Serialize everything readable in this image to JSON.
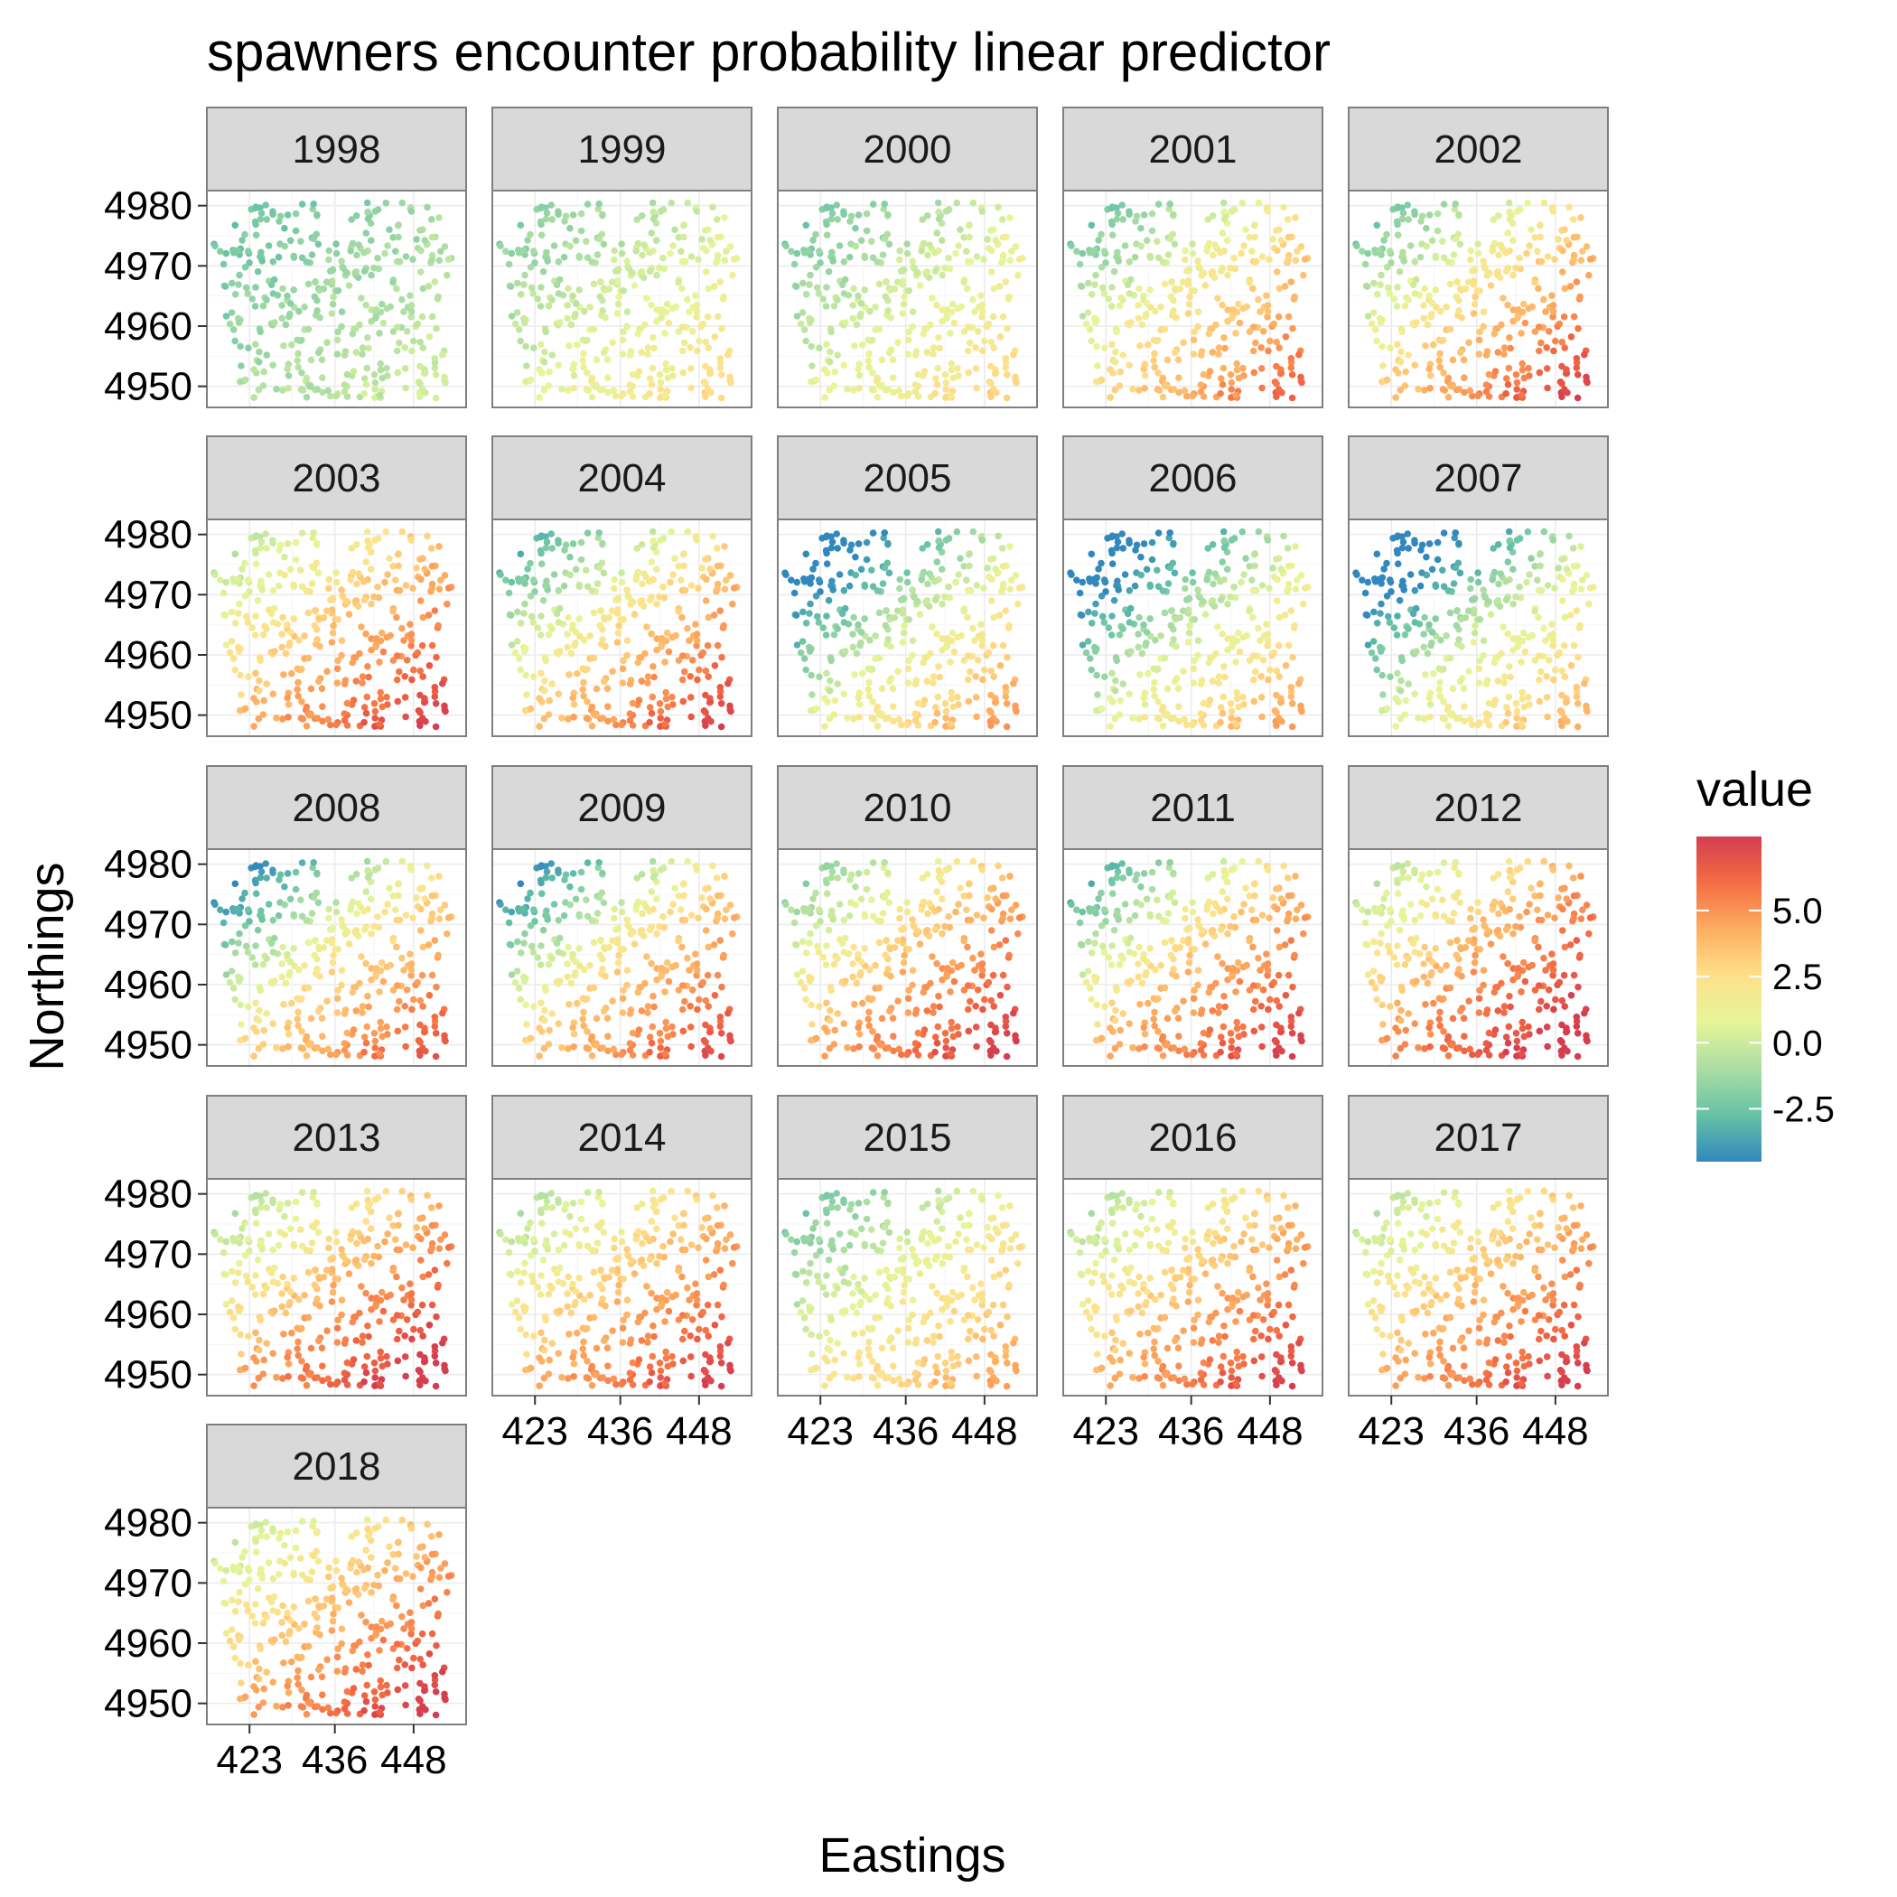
{
  "chart_data": {
    "type": "scatter",
    "title": "spawners encounter probability linear predictor",
    "xlabel": "Eastings",
    "ylabel": "Northings",
    "facet_variable": "year",
    "facets": [
      "1998",
      "1999",
      "2000",
      "2001",
      "2002",
      "2003",
      "2004",
      "2005",
      "2006",
      "2007",
      "2008",
      "2009",
      "2010",
      "2011",
      "2012",
      "2013",
      "2014",
      "2015",
      "2016",
      "2017",
      "2018"
    ],
    "facet_columns": 5,
    "x_ticks": [
      423,
      436,
      448
    ],
    "y_ticks": [
      4950,
      4960,
      4970,
      4980
    ],
    "xlim": [
      416.5,
      456
    ],
    "ylim": [
      4946.5,
      4982.5
    ],
    "grid": true,
    "legend": {
      "title": "value",
      "position": "right",
      "type": "colorbar",
      "range": [
        -4.5,
        7.8
      ],
      "breaks": [
        5.0,
        2.5,
        0.0,
        -2.5
      ],
      "break_labels": [
        "5.0",
        "2.5",
        "0.0",
        "-2.5"
      ],
      "palette": [
        "#3288bd",
        "#66c2a5",
        "#abdda4",
        "#e6f598",
        "#fee08b",
        "#fdae61",
        "#f46d43",
        "#d53e4f"
      ]
    },
    "panel_summary": [
      {
        "year": "1998",
        "mean_value": -1.0,
        "north_west": -2.0,
        "south_east": -0.3
      },
      {
        "year": "1999",
        "mean_value": 0.5,
        "north_west": -1.0,
        "south_east": 1.8
      },
      {
        "year": "2000",
        "mean_value": 0.6,
        "north_west": -1.2,
        "south_east": 2.0
      },
      {
        "year": "2001",
        "mean_value": 2.4,
        "north_west": -0.6,
        "south_east": 4.8
      },
      {
        "year": "2002",
        "mean_value": 3.0,
        "north_west": -0.3,
        "south_east": 5.8
      },
      {
        "year": "2003",
        "mean_value": 3.8,
        "north_west": 1.2,
        "south_east": 6.2
      },
      {
        "year": "2004",
        "mean_value": 3.0,
        "north_west": -0.8,
        "south_east": 5.8
      },
      {
        "year": "2005",
        "mean_value": 0.6,
        "north_west": -3.5,
        "south_east": 3.2
      },
      {
        "year": "2006",
        "mean_value": 0.4,
        "north_west": -3.6,
        "south_east": 3.0
      },
      {
        "year": "2007",
        "mean_value": 0.3,
        "north_west": -4.0,
        "south_east": 2.6
      },
      {
        "year": "2008",
        "mean_value": 2.6,
        "north_west": -1.8,
        "south_east": 5.2
      },
      {
        "year": "2009",
        "mean_value": 3.0,
        "north_west": -1.5,
        "south_east": 5.6
      },
      {
        "year": "2010",
        "mean_value": 4.0,
        "north_west": 0.5,
        "south_east": 6.4
      },
      {
        "year": "2011",
        "mean_value": 3.8,
        "north_west": -0.5,
        "south_east": 6.2
      },
      {
        "year": "2012",
        "mean_value": 4.8,
        "north_west": 1.5,
        "south_east": 7.2
      },
      {
        "year": "2013",
        "mean_value": 4.4,
        "north_west": 1.2,
        "south_east": 7.0
      },
      {
        "year": "2014",
        "mean_value": 3.8,
        "north_west": 1.0,
        "south_east": 6.2
      },
      {
        "year": "2015",
        "mean_value": 1.6,
        "north_west": -0.8,
        "south_east": 3.4
      },
      {
        "year": "2016",
        "mean_value": 3.8,
        "north_west": 1.0,
        "south_east": 6.2
      },
      {
        "year": "2017",
        "mean_value": 4.0,
        "north_west": 1.2,
        "south_east": 6.4
      },
      {
        "year": "2018",
        "mean_value": 4.1,
        "north_west": 1.5,
        "south_east": 6.6
      }
    ]
  }
}
